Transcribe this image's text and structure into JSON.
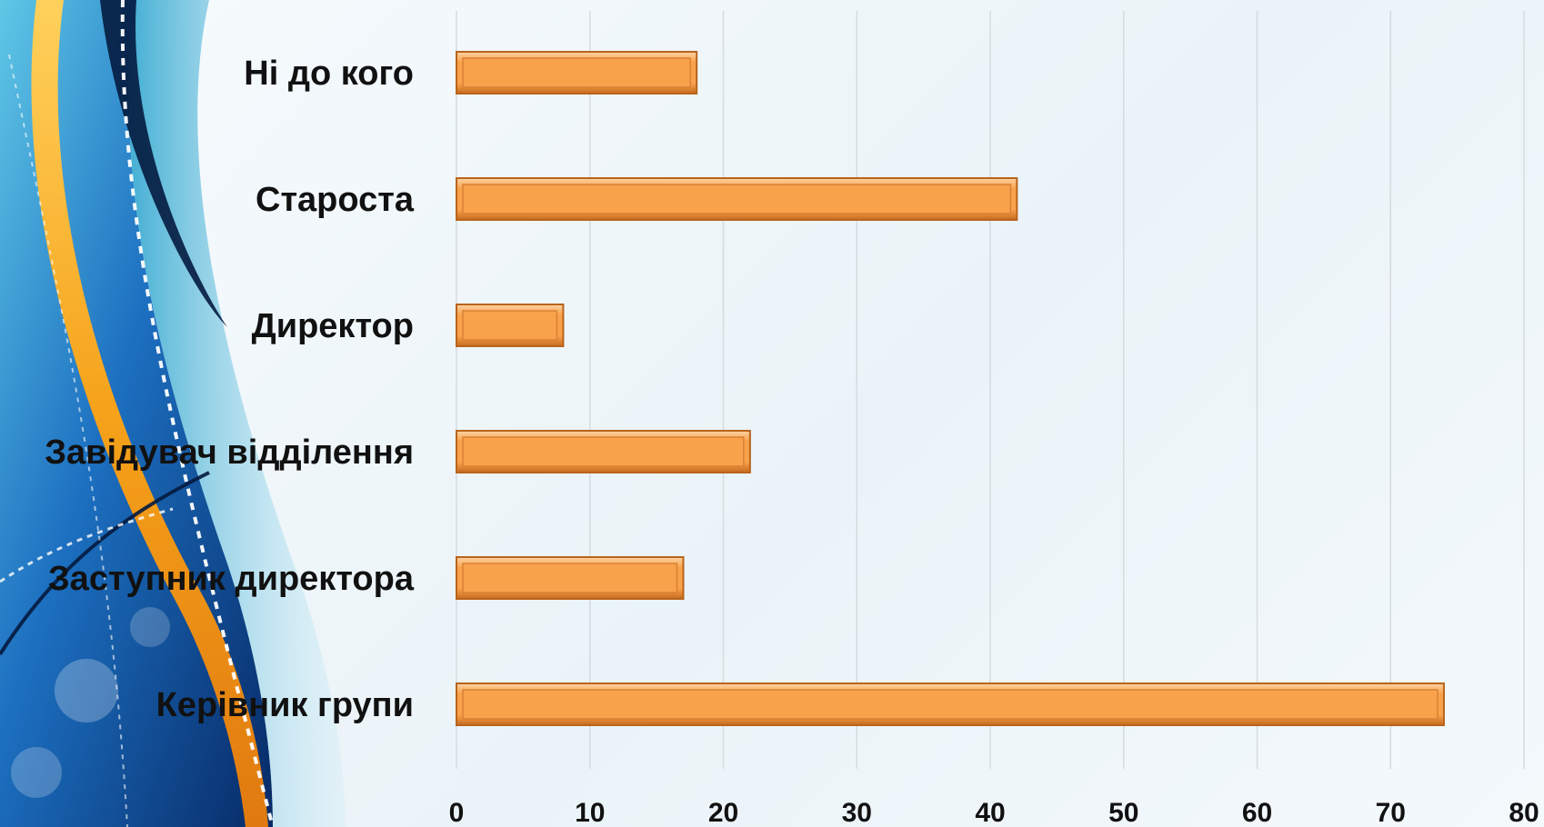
{
  "colors": {
    "bar_fill": "#f9a24c",
    "bar_border": "#b9641d",
    "gridline": "#d6dbdf",
    "label_text": "#111111",
    "decor_blue": "#0b3f8c",
    "decor_orange": "#f6a21a",
    "decor_teal": "#38b6d9"
  },
  "chart_data": {
    "type": "bar",
    "orientation": "horizontal",
    "categories": [
      "Ні до кого",
      "Староста",
      "Директор",
      "Завідувач відділення",
      "Заступник директора",
      "Керівник групи"
    ],
    "values": [
      18,
      42,
      8,
      22,
      17,
      74
    ],
    "title": "",
    "xlabel": "",
    "ylabel": "",
    "xlim": [
      0,
      80
    ],
    "ticks": [
      "0",
      "10",
      "20",
      "30",
      "40",
      "50",
      "60",
      "70",
      "80"
    ],
    "grid": "vertical"
  }
}
